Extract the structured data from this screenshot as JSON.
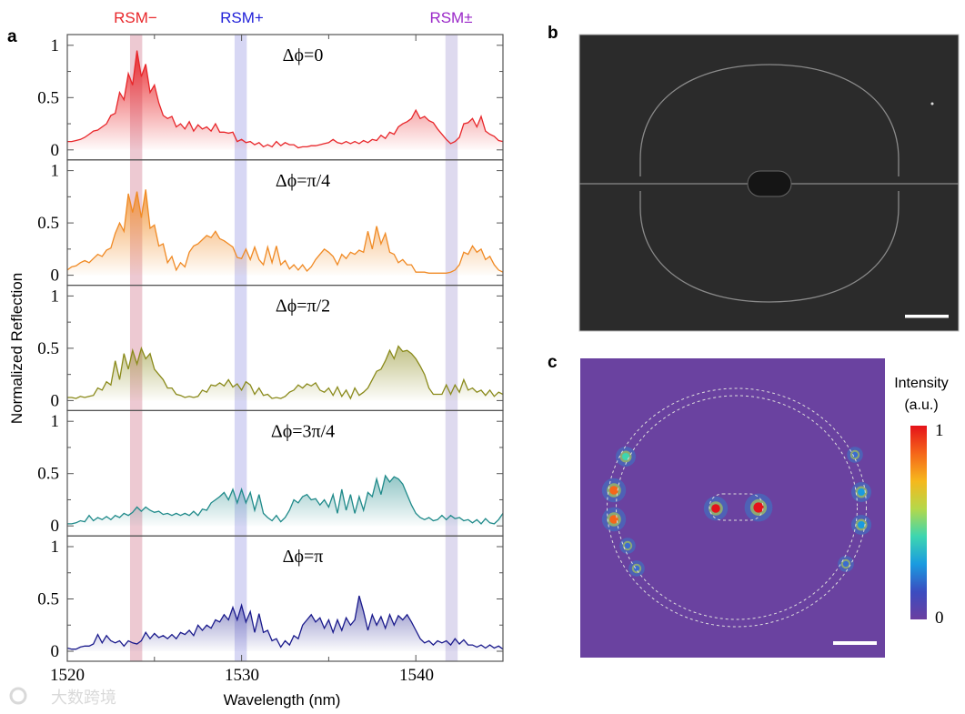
{
  "panel_labels": {
    "a": "a",
    "b": "b",
    "c": "c"
  },
  "band_labels": [
    {
      "text": "RSM−",
      "color": "#e8262a",
      "range": [
        1523.6,
        1524.3
      ],
      "fill": "#e7b7c3"
    },
    {
      "text": "RSM+",
      "color": "#1f1fd8",
      "range": [
        1529.6,
        1530.3
      ],
      "fill": "#c9c9f0"
    },
    {
      "text": "RSM±",
      "color": "#9a28c8",
      "range": [
        1541.7,
        1542.4
      ],
      "fill": "#d3cdea"
    }
  ],
  "watermark": "大数跨境",
  "chart_data": {
    "type": "area",
    "xlabel": "Wavelength (nm)",
    "ylabel": "Normalized Reflection",
    "xlim": [
      1520,
      1545
    ],
    "ylim": [
      -0.1,
      1.1
    ],
    "xticks": [
      1520,
      1530,
      1540
    ],
    "xtick_labels": [
      "1520",
      "1530",
      "1540"
    ],
    "yticks": [
      0,
      0.5,
      1
    ],
    "ytick_labels": [
      "0",
      "0.5",
      "1"
    ],
    "x_start": 1520,
    "x_step": 0.25,
    "series": [
      {
        "name": "Δϕ=0",
        "color": "#e8262a",
        "values": [
          0.08,
          0.08,
          0.09,
          0.1,
          0.12,
          0.15,
          0.18,
          0.19,
          0.22,
          0.25,
          0.33,
          0.35,
          0.55,
          0.48,
          0.73,
          0.62,
          0.95,
          0.7,
          0.82,
          0.55,
          0.62,
          0.45,
          0.33,
          0.3,
          0.32,
          0.22,
          0.25,
          0.2,
          0.27,
          0.18,
          0.24,
          0.2,
          0.22,
          0.18,
          0.25,
          0.17,
          0.17,
          0.16,
          0.17,
          0.08,
          0.1,
          0.07,
          0.08,
          0.05,
          0.07,
          0.03,
          0.05,
          0.03,
          0.08,
          0.04,
          0.07,
          0.05,
          0.05,
          0.02,
          0.03,
          0.03,
          0.04,
          0.04,
          0.05,
          0.06,
          0.07,
          0.1,
          0.07,
          0.06,
          0.08,
          0.06,
          0.08,
          0.06,
          0.09,
          0.07,
          0.1,
          0.09,
          0.14,
          0.11,
          0.17,
          0.15,
          0.22,
          0.25,
          0.27,
          0.3,
          0.38,
          0.3,
          0.32,
          0.28,
          0.26,
          0.2,
          0.15,
          0.1,
          0.06,
          0.08,
          0.12,
          0.25,
          0.26,
          0.3,
          0.22,
          0.32,
          0.18,
          0.15,
          0.13,
          0.09,
          0.08
        ]
      },
      {
        "name": "Δϕ=π/4",
        "color": "#f08a24",
        "values": [
          0.05,
          0.08,
          0.09,
          0.12,
          0.14,
          0.12,
          0.16,
          0.2,
          0.18,
          0.24,
          0.26,
          0.4,
          0.5,
          0.42,
          0.78,
          0.6,
          0.8,
          0.55,
          0.82,
          0.45,
          0.48,
          0.28,
          0.3,
          0.12,
          0.18,
          0.05,
          0.12,
          0.08,
          0.22,
          0.28,
          0.3,
          0.34,
          0.38,
          0.36,
          0.42,
          0.35,
          0.33,
          0.3,
          0.27,
          0.17,
          0.16,
          0.25,
          0.15,
          0.27,
          0.15,
          0.1,
          0.27,
          0.12,
          0.28,
          0.1,
          0.14,
          0.06,
          0.1,
          0.05,
          0.1,
          0.04,
          0.08,
          0.15,
          0.2,
          0.25,
          0.22,
          0.18,
          0.1,
          0.2,
          0.16,
          0.22,
          0.2,
          0.24,
          0.22,
          0.42,
          0.25,
          0.47,
          0.3,
          0.4,
          0.22,
          0.2,
          0.12,
          0.15,
          0.1,
          0.1,
          0.03,
          0.03,
          0.03,
          0.02,
          0.02,
          0.02,
          0.02,
          0.02,
          0.03,
          0.05,
          0.1,
          0.22,
          0.2,
          0.28,
          0.22,
          0.25,
          0.15,
          0.18,
          0.1,
          0.05,
          0.03
        ]
      },
      {
        "name": "Δϕ=π/2",
        "color": "#8a8a1a",
        "values": [
          0.03,
          0.03,
          0.02,
          0.04,
          0.03,
          0.04,
          0.05,
          0.12,
          0.1,
          0.18,
          0.15,
          0.38,
          0.2,
          0.45,
          0.3,
          0.48,
          0.35,
          0.5,
          0.4,
          0.45,
          0.3,
          0.25,
          0.2,
          0.12,
          0.12,
          0.06,
          0.05,
          0.03,
          0.04,
          0.03,
          0.04,
          0.1,
          0.08,
          0.15,
          0.14,
          0.17,
          0.14,
          0.2,
          0.13,
          0.16,
          0.1,
          0.18,
          0.15,
          0.06,
          0.12,
          0.05,
          0.06,
          0.02,
          0.03,
          0.02,
          0.04,
          0.08,
          0.1,
          0.15,
          0.12,
          0.16,
          0.14,
          0.17,
          0.1,
          0.08,
          0.12,
          0.05,
          0.13,
          0.04,
          0.1,
          0.02,
          0.12,
          0.05,
          0.08,
          0.12,
          0.2,
          0.28,
          0.3,
          0.38,
          0.48,
          0.4,
          0.52,
          0.47,
          0.48,
          0.45,
          0.4,
          0.33,
          0.25,
          0.12,
          0.06,
          0.06,
          0.06,
          0.15,
          0.06,
          0.15,
          0.08,
          0.2,
          0.1,
          0.12,
          0.08,
          0.1,
          0.05,
          0.1,
          0.04,
          0.08,
          0.06
        ]
      },
      {
        "name": "Δϕ=3π/4",
        "color": "#1f8a8a",
        "values": [
          0.02,
          0.02,
          0.03,
          0.05,
          0.04,
          0.1,
          0.05,
          0.08,
          0.06,
          0.09,
          0.06,
          0.1,
          0.08,
          0.12,
          0.1,
          0.13,
          0.18,
          0.14,
          0.18,
          0.15,
          0.13,
          0.14,
          0.11,
          0.12,
          0.1,
          0.12,
          0.1,
          0.12,
          0.1,
          0.14,
          0.1,
          0.16,
          0.15,
          0.22,
          0.25,
          0.28,
          0.32,
          0.25,
          0.35,
          0.22,
          0.35,
          0.22,
          0.32,
          0.15,
          0.3,
          0.12,
          0.08,
          0.05,
          0.1,
          0.04,
          0.08,
          0.15,
          0.25,
          0.22,
          0.28,
          0.3,
          0.25,
          0.26,
          0.2,
          0.25,
          0.18,
          0.3,
          0.12,
          0.35,
          0.15,
          0.3,
          0.12,
          0.28,
          0.15,
          0.32,
          0.28,
          0.45,
          0.3,
          0.48,
          0.42,
          0.47,
          0.45,
          0.4,
          0.3,
          0.2,
          0.12,
          0.08,
          0.06,
          0.08,
          0.05,
          0.06,
          0.1,
          0.06,
          0.1,
          0.07,
          0.08,
          0.05,
          0.06,
          0.03,
          0.06,
          0.02,
          0.07,
          0.03,
          0.02,
          0.06,
          0.12
        ]
      },
      {
        "name": "Δϕ=π",
        "color": "#1a1a8c",
        "values": [
          0.03,
          0.02,
          0.02,
          0.04,
          0.05,
          0.05,
          0.07,
          0.16,
          0.08,
          0.15,
          0.1,
          0.08,
          0.1,
          0.05,
          0.1,
          0.08,
          0.07,
          0.1,
          0.18,
          0.12,
          0.17,
          0.13,
          0.15,
          0.12,
          0.16,
          0.12,
          0.18,
          0.16,
          0.2,
          0.15,
          0.25,
          0.2,
          0.25,
          0.22,
          0.3,
          0.28,
          0.35,
          0.3,
          0.42,
          0.3,
          0.44,
          0.28,
          0.38,
          0.18,
          0.36,
          0.18,
          0.2,
          0.1,
          0.12,
          0.04,
          0.1,
          0.06,
          0.15,
          0.12,
          0.25,
          0.3,
          0.35,
          0.28,
          0.32,
          0.22,
          0.3,
          0.18,
          0.3,
          0.2,
          0.32,
          0.25,
          0.3,
          0.53,
          0.38,
          0.2,
          0.35,
          0.25,
          0.33,
          0.22,
          0.35,
          0.25,
          0.34,
          0.3,
          0.35,
          0.28,
          0.2,
          0.12,
          0.08,
          0.1,
          0.06,
          0.1,
          0.08,
          0.1,
          0.06,
          0.12,
          0.07,
          0.11,
          0.06,
          0.06,
          0.04,
          0.06,
          0.03,
          0.06,
          0.03,
          0.05,
          0.02
        ]
      }
    ]
  },
  "colorbar": {
    "title_line1": "Intensity",
    "title_line2": "(a.u.)",
    "max_label": "1",
    "min_label": "0",
    "colors": [
      "#6b3fa0",
      "#3b4cc0",
      "#1a9be0",
      "#3dd6b0",
      "#b5d84a",
      "#f6b81c",
      "#f5661a",
      "#e5121a"
    ]
  }
}
